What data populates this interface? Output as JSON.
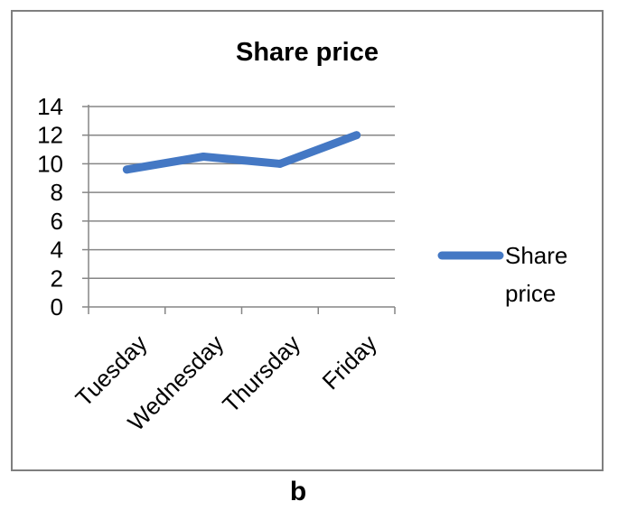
{
  "chart_data": {
    "type": "line",
    "title": "Share price",
    "categories": [
      "Tuesday",
      "Wednesday",
      "Thursday",
      "Friday"
    ],
    "series": [
      {
        "name": "Share price",
        "values": [
          9.6,
          10.5,
          10.0,
          12.0
        ],
        "color": "#4478c4"
      }
    ],
    "ylim": [
      0,
      14
    ],
    "yticks": [
      "0",
      "2",
      "4",
      "6",
      "8",
      "10",
      "12",
      "14"
    ],
    "grid": true,
    "legend_position": "right",
    "legend_label_lines": [
      "Share",
      "price"
    ]
  },
  "caption": "b"
}
